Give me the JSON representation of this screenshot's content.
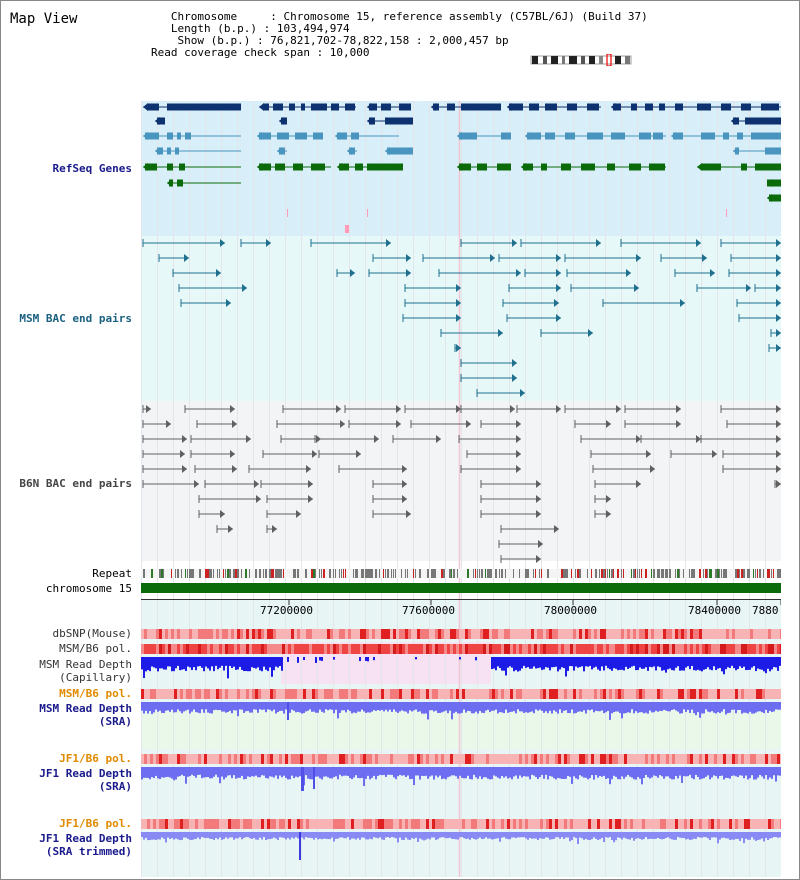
{
  "view_title": "Map View",
  "header_lines": [
    "   Chromosome     : Chromosome 15, reference assembly (C57BL/6J) (Build 37)",
    "   Length (b.p.) : 103,494,974",
    "    Show (b.p.) : 76,821,702-78,822,158 : 2,000,457 bp",
    "Read coverage check span : 10,000"
  ],
  "tracks": {
    "refseq_label": "RefSeq Genes",
    "msm_bac_label": "MSM BAC end pairs",
    "b6n_bac_label": "B6N BAC end pairs",
    "repeat_label": "Repeat",
    "chromosome_label": "chromosome 15",
    "dbsnp_label": "dbSNP(Mouse)",
    "msm_pol_cap_label": "MSM/B6 pol.",
    "msm_depth_cap_label": [
      "MSM Read Depth",
      "(Capillary)"
    ],
    "msm_pol_sra_label": "MSM/B6 pol.",
    "msm_depth_sra_label": [
      "MSM Read Depth",
      "(SRA)"
    ],
    "jf1_pol_label": "JF1/B6 pol.",
    "jf1_depth_label": [
      "JF1 Read Depth",
      "(SRA)"
    ],
    "jf1_pol_trim_label": "JF1/B6 pol.",
    "jf1_depth_trim_label": [
      "JF1 Read Depth",
      "(SRA trimmed)"
    ]
  },
  "axis": {
    "ticks": [
      "77200000",
      "77600000",
      "78000000",
      "78400000",
      "7880"
    ]
  },
  "colors": {
    "refseq_bg": "#d8eef8",
    "refseq_dark": "#0e3270",
    "refseq_mid": "#4a95bf",
    "refseq_green": "#0b6b0b",
    "msm_bg": "#e7f8f8",
    "msm_line": "#1f6f8f",
    "b6n_bg": "#f2f4f6",
    "b6n_line": "#606060",
    "chromosome_green": "#0b6b0b",
    "depth_blue": "#1c1ce6",
    "depth_light": "#6d6df2",
    "pol_red": "#ee3333",
    "label_navy": "#1a1a8c",
    "label_orange": "#e08a00",
    "label_teal": "#1a6080"
  }
}
